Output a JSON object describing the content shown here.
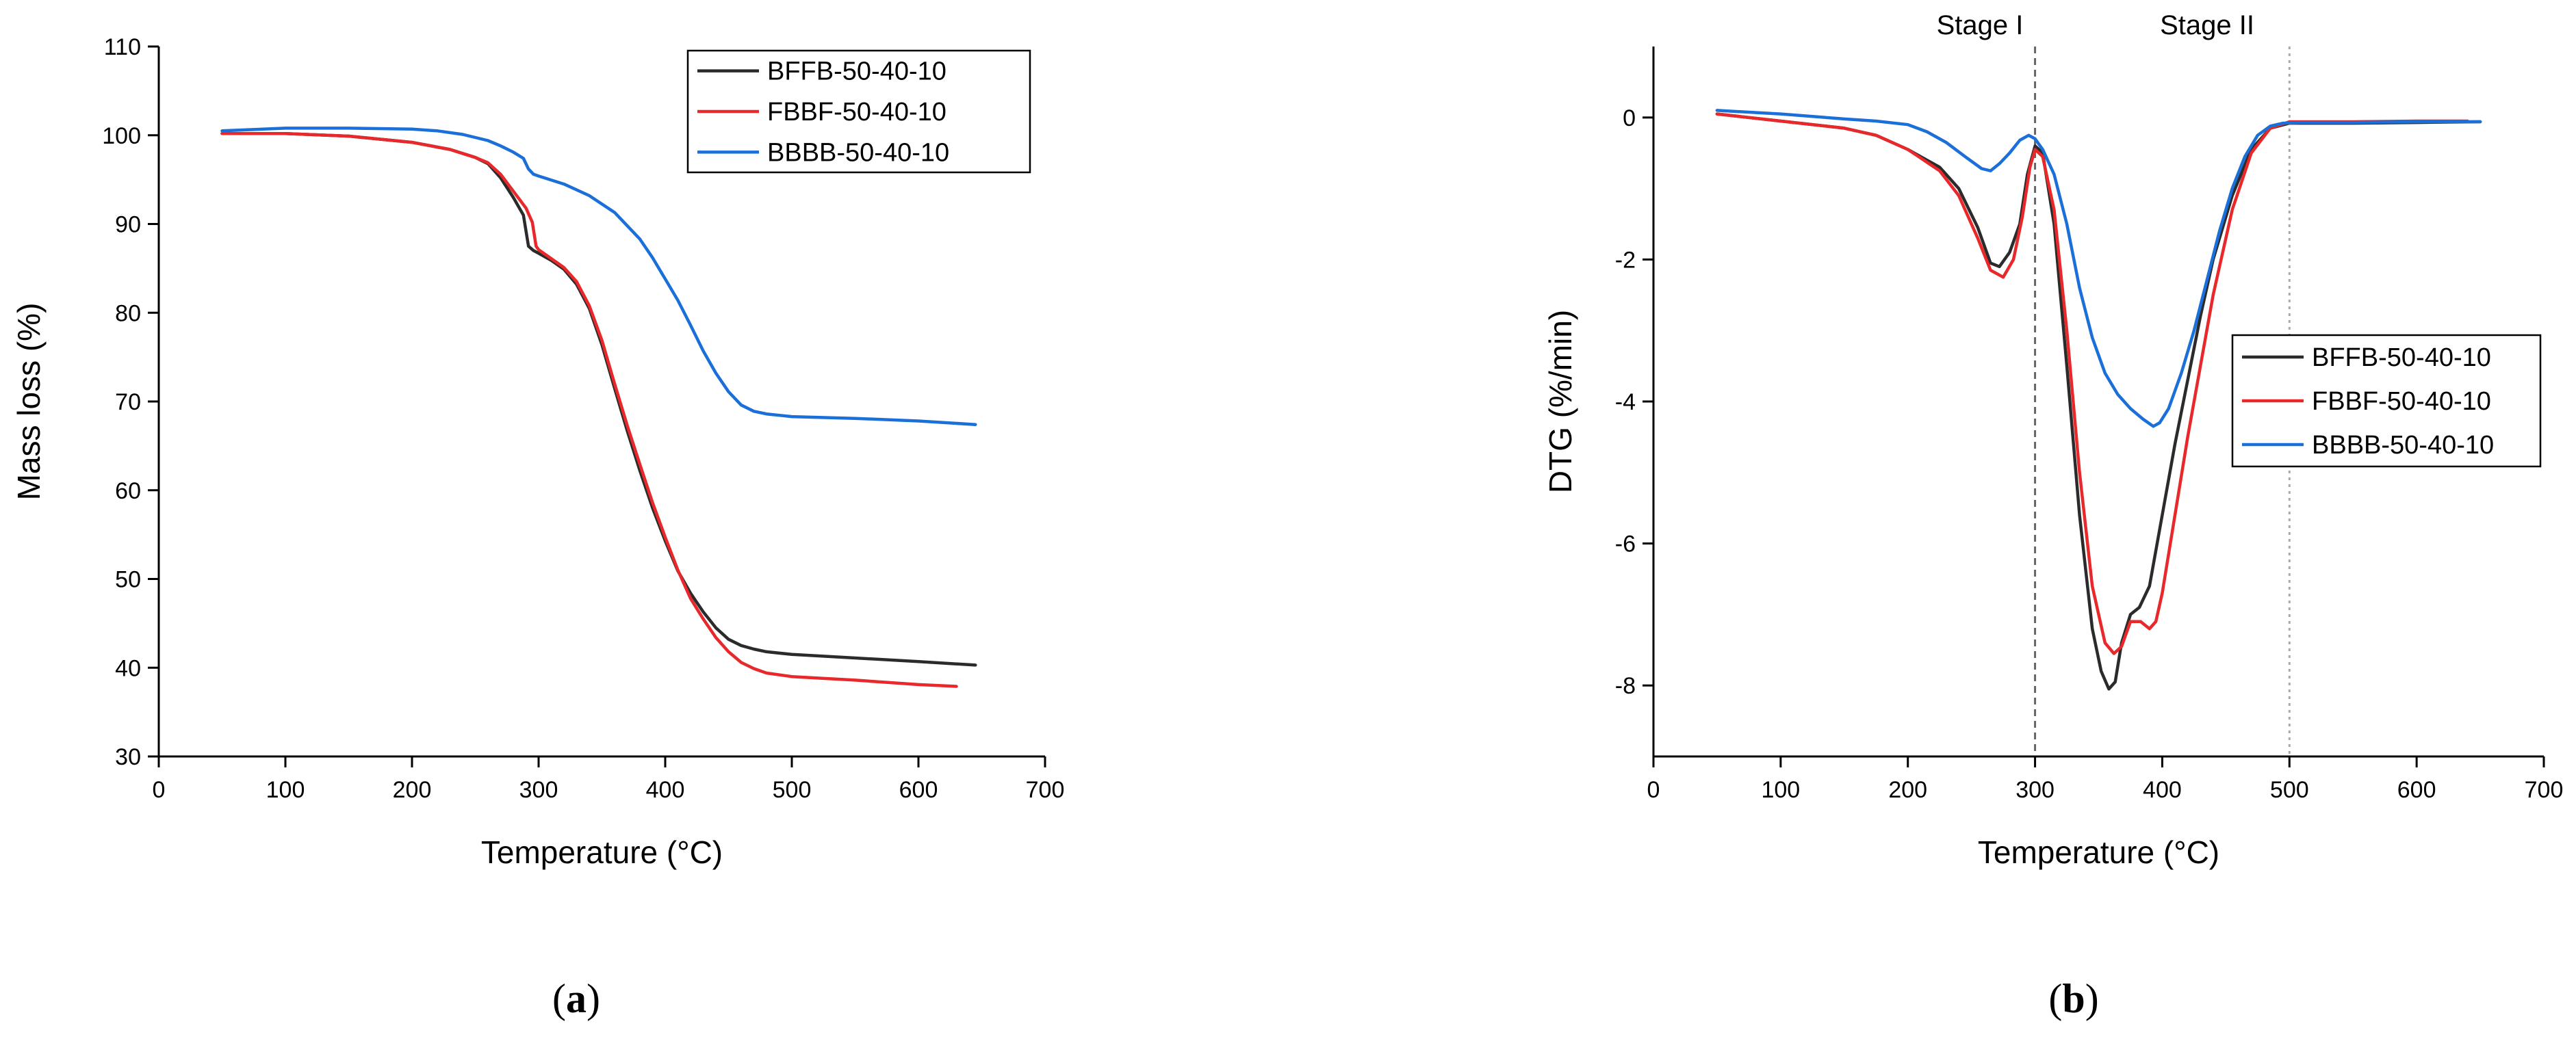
{
  "chart_data": [
    {
      "type": "line",
      "panel_label": "a",
      "title": "",
      "xlabel": "Temperature (°C)",
      "ylabel": "Mass loss (%)",
      "xlim": [
        0,
        700
      ],
      "ylim": [
        30,
        110
      ],
      "xticks": [
        0,
        100,
        200,
        300,
        400,
        500,
        600,
        700
      ],
      "yticks": [
        30,
        40,
        50,
        60,
        70,
        80,
        90,
        100,
        110
      ],
      "grid": false,
      "legend_position": "top-right",
      "series": [
        {
          "name": "BFFB-50-40-10",
          "color": "#2b2b2b",
          "x": [
            50,
            100,
            150,
            200,
            230,
            250,
            260,
            270,
            280,
            288,
            292,
            296,
            300,
            310,
            320,
            330,
            340,
            350,
            360,
            370,
            380,
            390,
            400,
            410,
            420,
            430,
            440,
            450,
            460,
            470,
            480,
            500,
            550,
            600,
            645
          ],
          "y": [
            100.2,
            100.2,
            99.9,
            99.2,
            98.4,
            97.5,
            96.8,
            95.2,
            93.0,
            91.0,
            87.5,
            87.0,
            86.7,
            85.9,
            84.9,
            83.2,
            80.5,
            76.4,
            71.5,
            66.7,
            62.2,
            58.0,
            54.3,
            50.9,
            48.4,
            46.3,
            44.5,
            43.2,
            42.5,
            42.1,
            41.8,
            41.5,
            41.1,
            40.7,
            40.3
          ]
        },
        {
          "name": "FBBF-50-40-10",
          "color": "#e8282a",
          "x": [
            50,
            100,
            150,
            200,
            230,
            250,
            260,
            270,
            280,
            290,
            295,
            298,
            300,
            310,
            320,
            330,
            340,
            350,
            360,
            370,
            380,
            390,
            400,
            410,
            420,
            430,
            440,
            450,
            460,
            470,
            480,
            500,
            550,
            600,
            630
          ],
          "y": [
            100.2,
            100.2,
            99.9,
            99.2,
            98.4,
            97.5,
            96.9,
            95.6,
            93.7,
            91.8,
            90.2,
            87.5,
            87.1,
            86.1,
            85.1,
            83.5,
            80.8,
            76.9,
            72.0,
            67.3,
            62.9,
            58.6,
            54.7,
            51.0,
            47.8,
            45.5,
            43.4,
            41.8,
            40.6,
            39.9,
            39.4,
            39.0,
            38.6,
            38.1,
            37.9
          ]
        },
        {
          "name": "BBBB-50-40-10",
          "color": "#1a6fd8",
          "x": [
            50,
            100,
            150,
            200,
            220,
            240,
            260,
            270,
            280,
            288,
            292,
            296,
            300,
            320,
            340,
            360,
            380,
            390,
            400,
            410,
            420,
            430,
            440,
            450,
            460,
            470,
            480,
            500,
            550,
            600,
            645
          ],
          "y": [
            100.5,
            100.8,
            100.8,
            100.7,
            100.5,
            100.1,
            99.4,
            98.8,
            98.1,
            97.4,
            96.2,
            95.6,
            95.4,
            94.5,
            93.2,
            91.3,
            88.3,
            86.2,
            83.8,
            81.4,
            78.6,
            75.7,
            73.2,
            71.1,
            69.6,
            68.9,
            68.6,
            68.3,
            68.1,
            67.8,
            67.4
          ]
        }
      ]
    },
    {
      "type": "line",
      "panel_label": "b",
      "title": "",
      "xlabel": "Temperature (°C)",
      "ylabel": "DTG (%/min)",
      "xlim": [
        0,
        700
      ],
      "ylim": [
        -9,
        1
      ],
      "xticks": [
        0,
        100,
        200,
        300,
        400,
        500,
        600,
        700
      ],
      "yticks": [
        -8,
        -6,
        -4,
        -2,
        0
      ],
      "grid": false,
      "legend_position": "center-right",
      "reference_lines": [
        {
          "x": 300,
          "style": "dashed",
          "color": "#666666"
        },
        {
          "x": 500,
          "style": "dotted",
          "color": "#aaaaaa"
        }
      ],
      "annotations": [
        "Stage I",
        "Stage II"
      ],
      "series": [
        {
          "name": "BFFB-50-40-10",
          "color": "#2b2b2b",
          "x": [
            50,
            100,
            150,
            175,
            200,
            225,
            240,
            255,
            265,
            272,
            280,
            288,
            294,
            300,
            306,
            315,
            325,
            335,
            345,
            352,
            358,
            363,
            368,
            375,
            382,
            390,
            400,
            410,
            420,
            430,
            440,
            455,
            470,
            485,
            500,
            550,
            600,
            650
          ],
          "y": [
            0.05,
            -0.05,
            -0.15,
            -0.25,
            -0.45,
            -0.7,
            -1.0,
            -1.55,
            -2.05,
            -2.1,
            -1.9,
            -1.5,
            -0.8,
            -0.4,
            -0.5,
            -1.5,
            -3.5,
            -5.6,
            -7.2,
            -7.8,
            -8.05,
            -7.95,
            -7.4,
            -7.0,
            -6.9,
            -6.6,
            -5.6,
            -4.6,
            -3.7,
            -2.8,
            -2.0,
            -1.1,
            -0.45,
            -0.15,
            -0.08,
            -0.08,
            -0.07,
            -0.06
          ]
        },
        {
          "name": "FBBF-50-40-10",
          "color": "#e8282a",
          "x": [
            50,
            100,
            150,
            175,
            200,
            225,
            240,
            255,
            265,
            275,
            283,
            290,
            296,
            300,
            306,
            315,
            325,
            335,
            345,
            355,
            362,
            368,
            375,
            383,
            390,
            395,
            400,
            410,
            420,
            430,
            440,
            455,
            470,
            485,
            500,
            550,
            600,
            640
          ],
          "y": [
            0.05,
            -0.05,
            -0.15,
            -0.25,
            -0.45,
            -0.75,
            -1.1,
            -1.7,
            -2.15,
            -2.25,
            -2.0,
            -1.4,
            -0.7,
            -0.45,
            -0.55,
            -1.3,
            -3.0,
            -5.0,
            -6.6,
            -7.4,
            -7.55,
            -7.45,
            -7.1,
            -7.1,
            -7.2,
            -7.1,
            -6.7,
            -5.6,
            -4.5,
            -3.5,
            -2.5,
            -1.3,
            -0.5,
            -0.15,
            -0.06,
            -0.06,
            -0.05,
            -0.05
          ]
        },
        {
          "name": "BBBB-50-40-10",
          "color": "#1a6fd8",
          "x": [
            50,
            100,
            150,
            175,
            200,
            215,
            230,
            245,
            258,
            265,
            272,
            280,
            288,
            295,
            300,
            306,
            315,
            325,
            335,
            345,
            355,
            365,
            375,
            385,
            393,
            398,
            405,
            415,
            425,
            435,
            445,
            455,
            465,
            475,
            485,
            495,
            510,
            550,
            600,
            650
          ],
          "y": [
            0.1,
            0.05,
            -0.02,
            -0.05,
            -0.1,
            -0.2,
            -0.35,
            -0.55,
            -0.72,
            -0.75,
            -0.65,
            -0.5,
            -0.32,
            -0.25,
            -0.3,
            -0.45,
            -0.8,
            -1.5,
            -2.4,
            -3.1,
            -3.6,
            -3.9,
            -4.1,
            -4.25,
            -4.35,
            -4.3,
            -4.1,
            -3.6,
            -3.0,
            -2.3,
            -1.6,
            -1.0,
            -0.55,
            -0.25,
            -0.12,
            -0.08,
            -0.07,
            -0.07,
            -0.06,
            -0.06
          ]
        }
      ]
    }
  ]
}
